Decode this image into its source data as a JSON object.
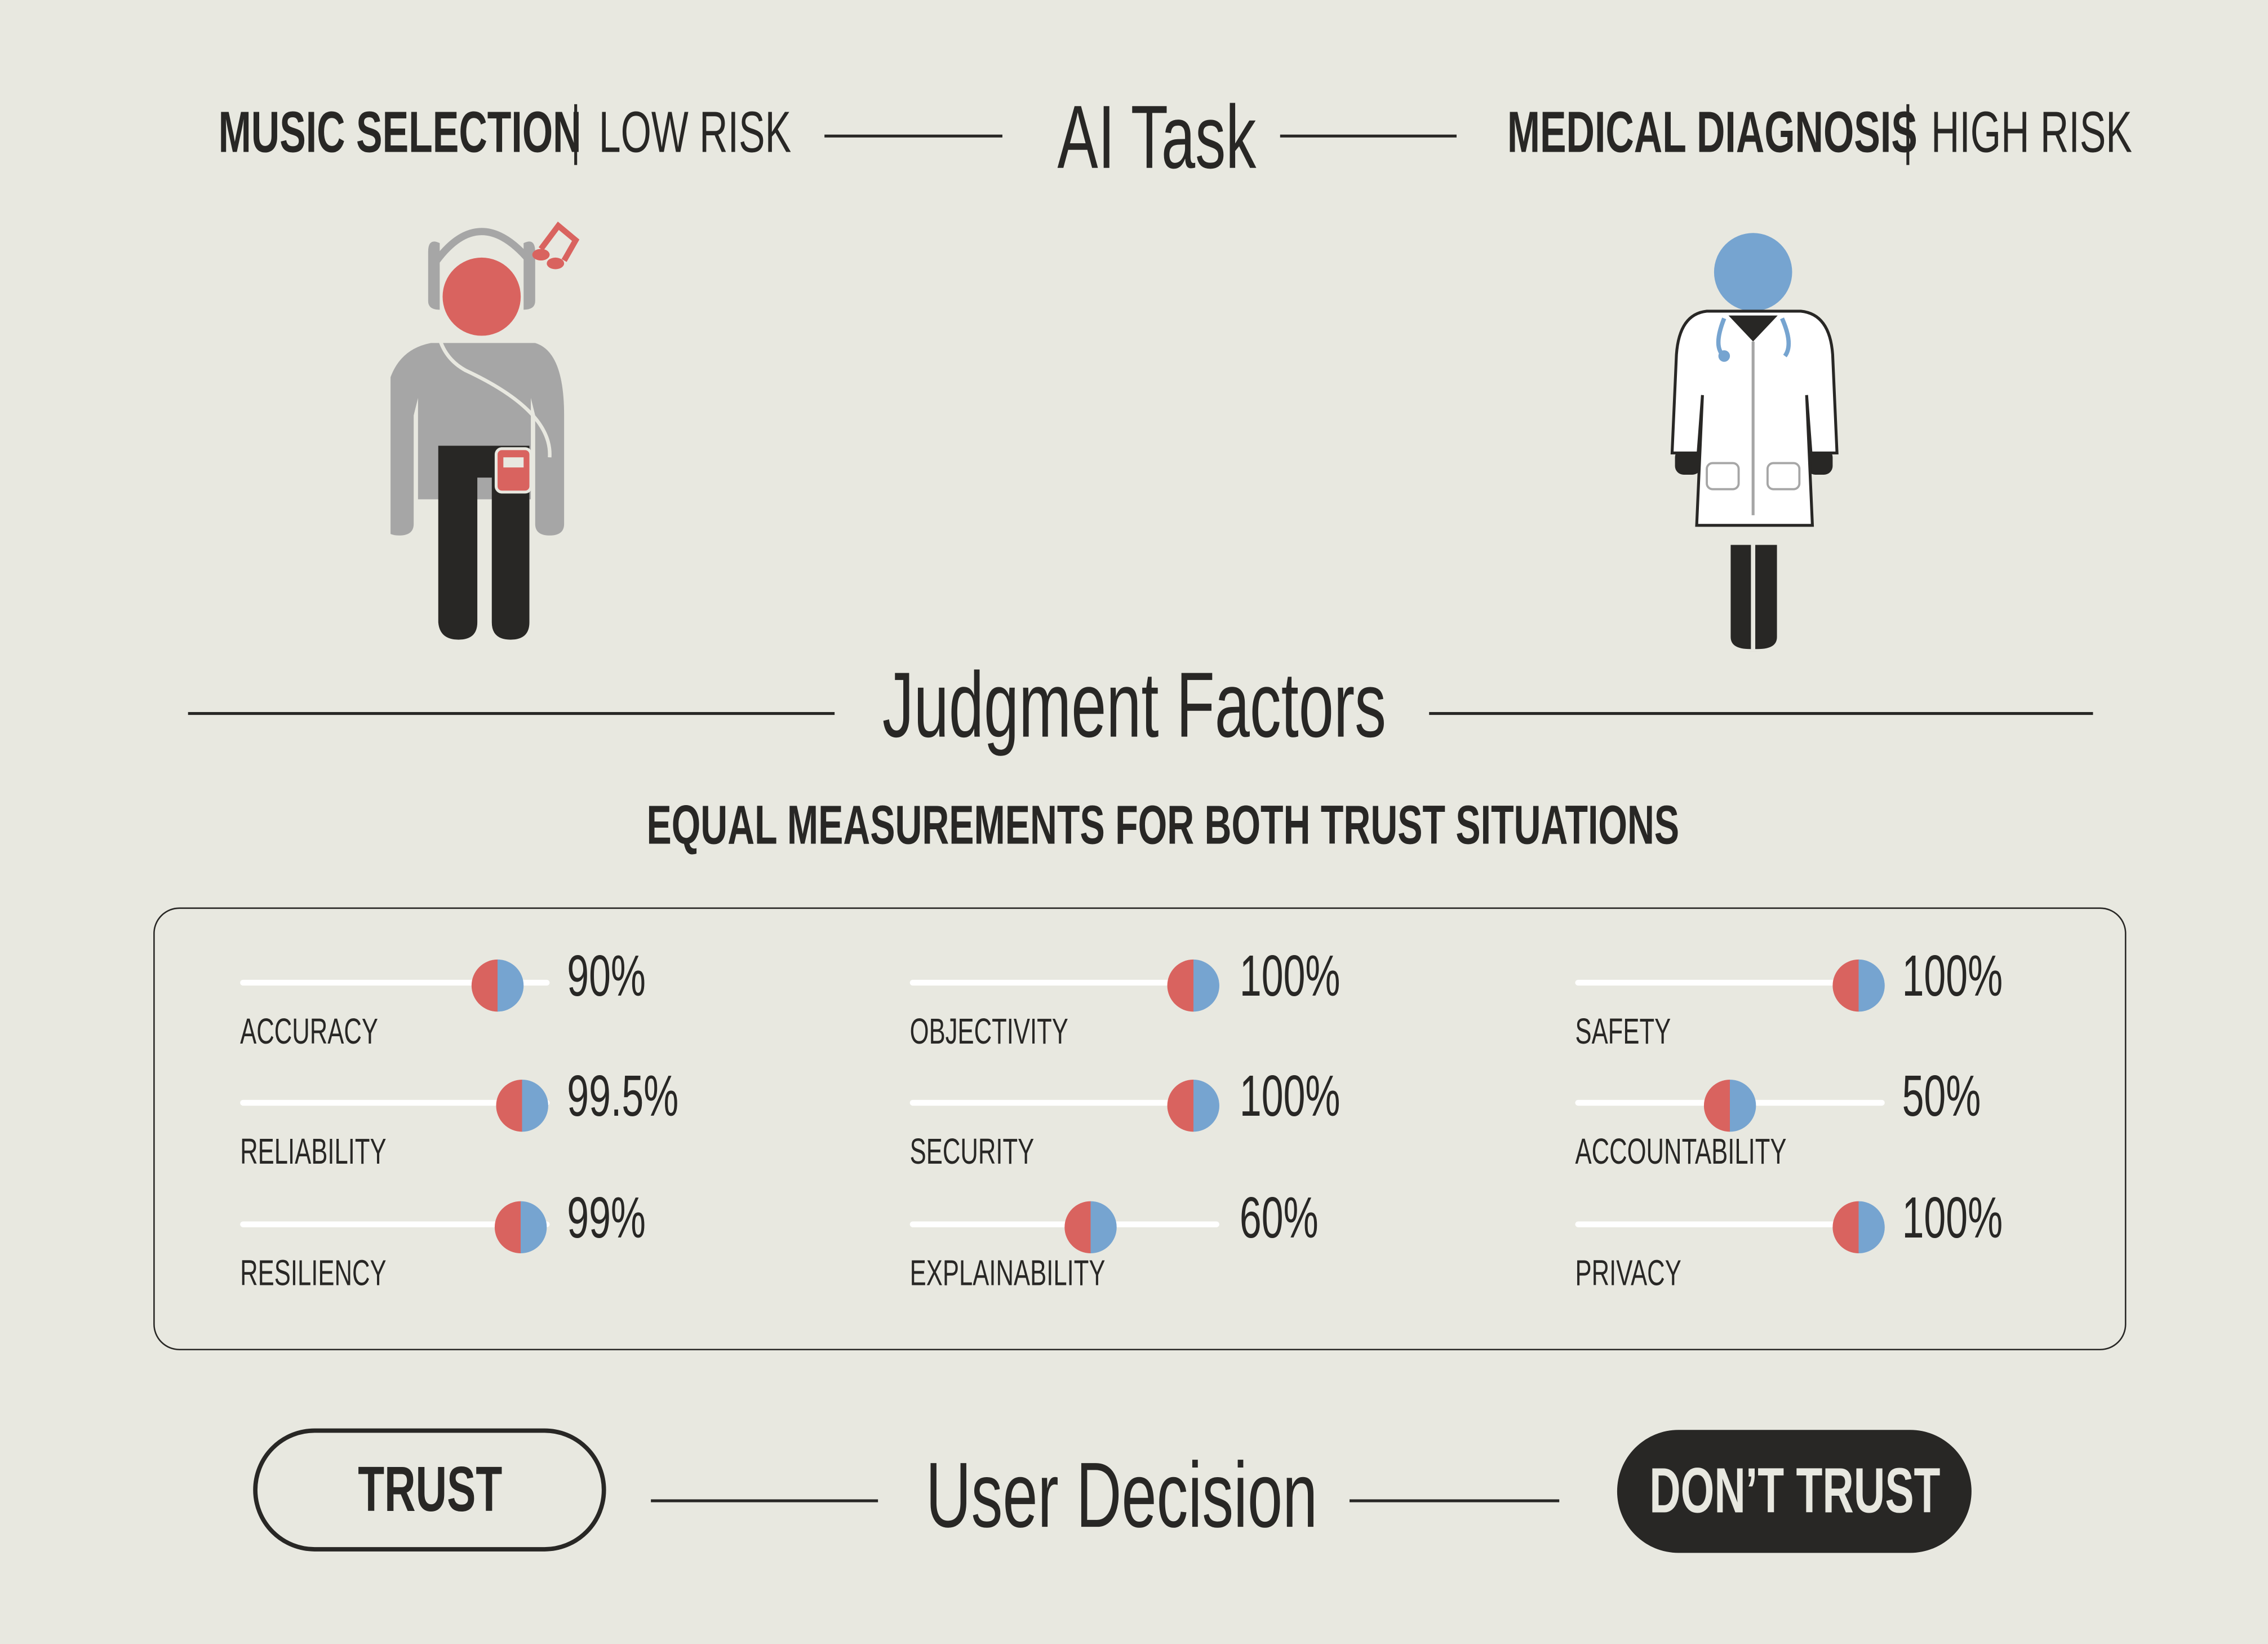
{
  "header": {
    "left_task": "MUSIC SELECTION",
    "left_risk": "LOW RISK",
    "center_title": "AI Task",
    "right_task": "MEDICAL DIAGNOSIS",
    "right_risk": "HIGH RISK"
  },
  "figures": {
    "left_icon": "person-with-headphones-icon",
    "right_icon": "doctor-icon"
  },
  "judgment": {
    "title": "Judgment Factors",
    "subtitle": "EQUAL MEASUREMENTS FOR BOTH TRUST SITUATIONS",
    "factors": [
      {
        "label": "ACCURACY",
        "value_text": "90%",
        "value": 90
      },
      {
        "label": "RELIABILITY",
        "value_text": "99.5%",
        "value": 99.5
      },
      {
        "label": "RESILIENCY",
        "value_text": "99%",
        "value": 99
      },
      {
        "label": "OBJECTIVITY",
        "value_text": "100%",
        "value": 100
      },
      {
        "label": "SECURITY",
        "value_text": "100%",
        "value": 100
      },
      {
        "label": "EXPLAINABILITY",
        "value_text": "60%",
        "value": 60
      },
      {
        "label": "SAFETY",
        "value_text": "100%",
        "value": 100
      },
      {
        "label": "ACCOUNTABILITY",
        "value_text": "50%",
        "value": 50
      },
      {
        "label": "PRIVACY",
        "value_text": "100%",
        "value": 100
      }
    ]
  },
  "decision": {
    "trust_label": "TRUST",
    "title": "User Decision",
    "dont_trust_label": "DON’T TRUST"
  },
  "colors": {
    "background": "#e8e8e0",
    "red": "#d9635f",
    "blue": "#76a4d0",
    "dark": "#282725",
    "gray": "#a6a6a6"
  }
}
